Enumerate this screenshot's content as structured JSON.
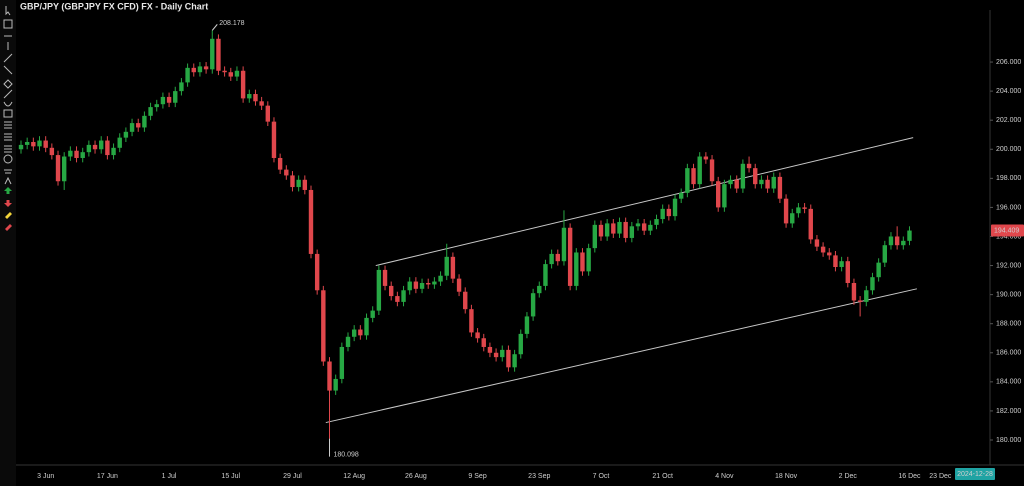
{
  "chart_data": {
    "type": "candlestick",
    "title": "GBP/JPY (GBPJPY FX CFD) FX - Daily Chart",
    "categories": [
      null,
      null,
      null,
      null,
      "3 Jun",
      null,
      null,
      null,
      null,
      null,
      null,
      null,
      null,
      null,
      "17 Jun",
      null,
      null,
      null,
      null,
      null,
      null,
      null,
      null,
      null,
      "1 Jul",
      null,
      null,
      null,
      null,
      null,
      null,
      null,
      null,
      null,
      "15 Jul",
      null,
      null,
      null,
      null,
      null,
      null,
      null,
      null,
      null,
      "29 Jul",
      null,
      null,
      null,
      null,
      null,
      null,
      null,
      null,
      null,
      "12 Aug",
      null,
      null,
      null,
      null,
      null,
      null,
      null,
      null,
      null,
      "26 Aug",
      null,
      null,
      null,
      null,
      null,
      null,
      null,
      null,
      null,
      "9 Sep",
      null,
      null,
      null,
      null,
      null,
      null,
      null,
      null,
      null,
      "23 Sep",
      null,
      null,
      null,
      null,
      null,
      null,
      null,
      null,
      null,
      "7 Oct",
      null,
      null,
      null,
      null,
      null,
      null,
      null,
      null,
      null,
      "21 Oct",
      null,
      null,
      null,
      null,
      null,
      null,
      null,
      null,
      null,
      "4 Nov",
      null,
      null,
      null,
      null,
      null,
      null,
      null,
      null,
      null,
      "18 Nov",
      null,
      null,
      null,
      null,
      null,
      null,
      null,
      null,
      null,
      "2 Dec",
      null,
      null,
      null,
      null,
      null,
      null,
      null,
      null,
      null,
      "16 Dec",
      null,
      null,
      null,
      null,
      "23 Dec"
    ],
    "open": [
      200.0,
      200.3,
      200.5,
      200.2,
      200.6,
      200.1,
      199.6,
      197.8,
      199.5,
      199.9,
      199.4,
      199.8,
      200.3,
      200.0,
      200.6,
      199.6,
      200.1,
      200.8,
      201.2,
      201.8,
      201.5,
      202.3,
      202.9,
      203.1,
      203.6,
      203.2,
      204.0,
      204.6,
      205.6,
      205.3,
      205.7,
      205.5,
      207.6,
      205.4,
      205.3,
      205.0,
      205.4,
      203.5,
      203.8,
      203.3,
      203.0,
      201.9,
      199.4,
      198.6,
      198.2,
      197.4,
      197.9,
      197.2,
      192.8,
      190.3,
      185.4,
      183.4,
      184.2,
      186.4,
      187.1,
      187.6,
      187.2,
      188.4,
      188.9,
      191.7,
      190.6,
      189.9,
      189.5,
      190.3,
      190.9,
      190.4,
      190.8,
      190.7,
      190.9,
      191.3,
      192.6,
      191.1,
      190.2,
      189.0,
      187.4,
      187.0,
      186.4,
      186.0,
      185.7,
      186.2,
      185.0,
      185.9,
      187.3,
      188.5,
      190.1,
      190.6,
      192.1,
      192.8,
      192.3,
      194.6,
      190.6,
      192.9,
      191.6,
      193.2,
      194.8,
      194.0,
      194.9,
      194.2,
      195.0,
      193.9,
      194.7,
      194.9,
      194.4,
      194.8,
      195.2,
      195.9,
      195.4,
      196.6,
      197.0,
      198.7,
      197.6,
      199.5,
      199.3,
      197.8,
      196.0,
      197.6,
      197.9,
      197.3,
      199.0,
      198.7,
      197.6,
      197.9,
      197.3,
      198.1,
      196.6,
      194.9,
      195.6,
      196.0,
      195.9,
      193.8,
      193.3,
      192.9,
      192.7,
      191.9,
      192.3,
      190.8,
      189.6,
      189.5,
      190.3,
      191.2,
      192.2,
      193.4,
      194.0,
      193.4,
      193.7,
      null,
      null,
      null,
      null,
      null
    ],
    "high": [
      200.6,
      200.8,
      200.8,
      200.9,
      200.9,
      200.4,
      199.9,
      199.8,
      200.2,
      200.2,
      200.1,
      200.6,
      200.6,
      200.9,
      200.9,
      200.4,
      201.1,
      201.5,
      202.1,
      202.1,
      202.6,
      203.2,
      203.4,
      203.9,
      203.9,
      204.3,
      204.9,
      205.9,
      205.9,
      206.0,
      206.0,
      208.178,
      207.9,
      205.7,
      205.6,
      205.7,
      205.7,
      204.1,
      204.1,
      203.6,
      203.3,
      202.2,
      199.7,
      198.9,
      198.5,
      198.2,
      198.2,
      197.5,
      193.1,
      190.6,
      185.7,
      184.5,
      186.7,
      187.4,
      187.9,
      187.9,
      188.7,
      189.2,
      192.0,
      192.0,
      190.9,
      190.2,
      190.6,
      191.2,
      191.2,
      191.1,
      191.1,
      191.2,
      191.6,
      193.5,
      192.9,
      191.4,
      190.5,
      189.3,
      187.7,
      187.3,
      186.7,
      186.3,
      186.5,
      186.5,
      186.2,
      187.6,
      188.8,
      190.4,
      190.9,
      192.4,
      193.1,
      193.1,
      195.8,
      194.9,
      193.2,
      193.2,
      193.5,
      195.1,
      195.1,
      195.2,
      195.2,
      195.3,
      195.3,
      195.0,
      195.2,
      195.2,
      195.1,
      195.5,
      196.2,
      196.2,
      196.9,
      197.3,
      199.0,
      199.0,
      199.8,
      199.8,
      199.6,
      198.1,
      197.9,
      198.2,
      198.2,
      199.3,
      199.5,
      199.0,
      198.2,
      198.2,
      198.4,
      198.4,
      196.9,
      195.9,
      196.3,
      196.3,
      196.2,
      194.1,
      193.6,
      193.2,
      193.0,
      192.6,
      192.6,
      191.1,
      189.9,
      190.6,
      191.5,
      192.5,
      193.7,
      194.3,
      194.7,
      194.0,
      194.7,
      null,
      null,
      null,
      null,
      null
    ],
    "low": [
      199.7,
      200.0,
      199.9,
      199.9,
      199.8,
      199.3,
      197.5,
      197.2,
      199.2,
      199.1,
      199.1,
      199.5,
      199.7,
      199.7,
      199.3,
      199.3,
      199.8,
      200.5,
      200.9,
      201.2,
      201.2,
      202.0,
      202.6,
      202.8,
      202.9,
      202.9,
      203.7,
      204.3,
      205.0,
      205.0,
      205.2,
      205.2,
      205.1,
      205.0,
      204.7,
      204.7,
      203.2,
      203.2,
      203.0,
      202.7,
      201.6,
      199.1,
      198.3,
      197.9,
      197.1,
      197.1,
      196.9,
      192.5,
      190.0,
      185.1,
      180.098,
      183.1,
      183.9,
      186.1,
      186.8,
      186.9,
      186.9,
      188.1,
      188.6,
      190.3,
      189.6,
      189.2,
      189.2,
      190.0,
      190.1,
      190.1,
      190.4,
      190.4,
      190.6,
      191.0,
      190.8,
      189.9,
      188.7,
      187.1,
      186.7,
      186.1,
      185.7,
      185.4,
      185.4,
      184.7,
      184.7,
      185.6,
      187.0,
      188.2,
      189.8,
      190.3,
      191.8,
      192.0,
      192.0,
      190.3,
      190.3,
      191.3,
      191.3,
      192.9,
      193.7,
      193.7,
      193.9,
      193.9,
      193.6,
      193.6,
      194.4,
      194.1,
      194.1,
      194.5,
      194.9,
      195.1,
      195.1,
      196.3,
      196.7,
      197.3,
      197.3,
      199.0,
      197.5,
      195.7,
      195.7,
      197.3,
      197.0,
      197.0,
      198.4,
      197.3,
      197.3,
      197.0,
      197.0,
      196.3,
      194.6,
      194.6,
      195.3,
      195.6,
      193.5,
      193.0,
      192.6,
      192.4,
      191.6,
      191.6,
      190.5,
      189.3,
      188.5,
      189.2,
      190.0,
      190.9,
      191.9,
      193.1,
      193.1,
      193.1,
      193.4,
      null,
      null,
      null,
      null,
      null
    ],
    "close": [
      200.3,
      200.5,
      200.2,
      200.6,
      200.1,
      199.6,
      197.8,
      199.5,
      199.9,
      199.4,
      199.8,
      200.3,
      200.0,
      200.6,
      199.6,
      200.1,
      200.8,
      201.2,
      201.8,
      201.5,
      202.3,
      202.9,
      203.1,
      203.6,
      203.2,
      204.0,
      204.6,
      205.6,
      205.3,
      205.7,
      205.5,
      207.6,
      205.4,
      205.3,
      205.0,
      205.4,
      203.5,
      203.8,
      203.3,
      203.0,
      201.9,
      199.4,
      198.6,
      198.2,
      197.4,
      197.9,
      197.2,
      192.8,
      190.3,
      185.4,
      183.4,
      184.2,
      186.4,
      187.1,
      187.6,
      187.2,
      188.4,
      188.9,
      191.7,
      190.6,
      189.9,
      189.5,
      190.3,
      190.9,
      190.4,
      190.8,
      190.7,
      190.9,
      191.3,
      192.6,
      191.1,
      190.2,
      189.0,
      187.4,
      187.0,
      186.4,
      186.0,
      185.7,
      186.2,
      185.0,
      185.9,
      187.3,
      188.5,
      190.1,
      190.6,
      192.1,
      192.8,
      192.3,
      194.6,
      190.6,
      192.9,
      191.6,
      193.2,
      194.8,
      194.0,
      194.9,
      194.2,
      195.0,
      193.9,
      194.7,
      194.9,
      194.4,
      194.8,
      195.2,
      195.9,
      195.4,
      196.6,
      197.0,
      198.7,
      197.6,
      199.5,
      199.3,
      197.8,
      196.0,
      197.6,
      197.9,
      197.3,
      199.0,
      198.7,
      197.6,
      197.9,
      197.3,
      198.1,
      196.6,
      194.9,
      195.6,
      196.0,
      195.9,
      193.8,
      193.3,
      192.9,
      192.7,
      191.9,
      192.3,
      190.8,
      189.6,
      189.5,
      190.3,
      191.2,
      192.2,
      193.4,
      194.0,
      193.4,
      193.7,
      194.409,
      null,
      null,
      null,
      null,
      null
    ],
    "up_color": "#27a844",
    "down_color": "#e0474c",
    "ylim": [
      178.28,
      209.58
    ],
    "yticks": [
      {
        "value": 180,
        "label": "180.000"
      },
      {
        "value": 182,
        "label": "182.000"
      },
      {
        "value": 184,
        "label": "184.000"
      },
      {
        "value": 186,
        "label": "186.000"
      },
      {
        "value": 188,
        "label": "188.000"
      },
      {
        "value": 190,
        "label": "190.000"
      },
      {
        "value": 192,
        "label": "192.000"
      },
      {
        "value": 194,
        "label": "194.000"
      },
      {
        "value": 196,
        "label": "196.000"
      },
      {
        "value": 198,
        "label": "198.000"
      },
      {
        "value": 200,
        "label": "200.000"
      },
      {
        "value": 202,
        "label": "202.000"
      },
      {
        "value": 204,
        "label": "204.000"
      },
      {
        "value": 206,
        "label": "206.000"
      }
    ],
    "trendlines": [
      {
        "x": [
          57.5,
          144.6
        ],
        "y": [
          192.0,
          200.8
        ]
      },
      {
        "x": [
          49.4,
          145.2
        ],
        "y": [
          181.2,
          190.4
        ]
      }
    ],
    "trendline_color": "#c8c8c8",
    "cursor_date": "2024-12-28"
  }
}
